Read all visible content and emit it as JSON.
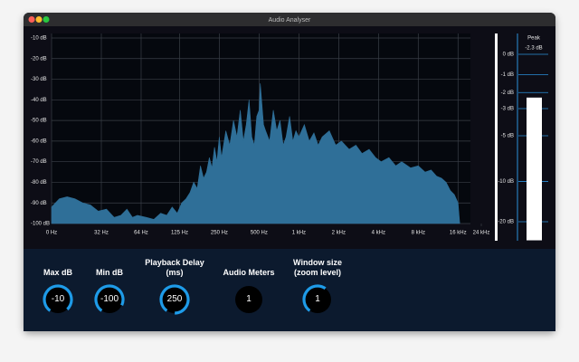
{
  "window": {
    "title": "Audio Analyser"
  },
  "chart_data": [
    {
      "type": "area",
      "color": "#2f6f98",
      "xscale": "log",
      "grid": true,
      "x": [
        0,
        5,
        10,
        15,
        20,
        25,
        30,
        35,
        40,
        45,
        50,
        55,
        60,
        70,
        80,
        90,
        100,
        110,
        120,
        130,
        140,
        150,
        160,
        170,
        180,
        190,
        200,
        210,
        220,
        230,
        240,
        250,
        260,
        280,
        300,
        320,
        340,
        360,
        380,
        400,
        420,
        440,
        460,
        480,
        500,
        510,
        540,
        560,
        600,
        640,
        680,
        720,
        760,
        800,
        850,
        900,
        950,
        1000,
        1100,
        1200,
        1300,
        1400,
        1500,
        1700,
        1900,
        2100,
        2400,
        2700,
        3000,
        3400,
        3800,
        4200,
        4800,
        5400,
        6000,
        7000,
        8000,
        9000,
        10000,
        11000,
        12000,
        13000,
        14000,
        15000,
        16000,
        16500
      ],
      "values": [
        -92,
        -88,
        -87,
        -88,
        -90,
        -91,
        -94,
        -93,
        -97,
        -96,
        -93,
        -97,
        -96,
        -97,
        -98,
        -95,
        -96,
        -92,
        -95,
        -90,
        -88,
        -85,
        -80,
        -83,
        -72,
        -78,
        -75,
        -68,
        -73,
        -63,
        -70,
        -58,
        -68,
        -55,
        -62,
        -50,
        -58,
        -45,
        -60,
        -52,
        -40,
        -58,
        -62,
        -48,
        -45,
        -32,
        -52,
        -55,
        -60,
        -45,
        -55,
        -50,
        -62,
        -58,
        -48,
        -60,
        -55,
        -58,
        -52,
        -60,
        -56,
        -62,
        -58,
        -55,
        -62,
        -60,
        -64,
        -62,
        -66,
        -64,
        -68,
        -70,
        -68,
        -72,
        -70,
        -73,
        -72,
        -75,
        -74,
        -77,
        -78,
        -80,
        -84,
        -86,
        -90,
        -100
      ],
      "xlim": [
        0,
        24000
      ],
      "xticks": [
        {
          "value": 0,
          "label": "0 Hz"
        },
        {
          "value": 32,
          "label": "32 Hz"
        },
        {
          "value": 64,
          "label": "64 Hz"
        },
        {
          "value": 125,
          "label": "125 Hz"
        },
        {
          "value": 250,
          "label": "250 Hz"
        },
        {
          "value": 500,
          "label": "500 Hz"
        },
        {
          "value": 1000,
          "label": "1 kHz"
        },
        {
          "value": 2000,
          "label": "2 kHz"
        },
        {
          "value": 4000,
          "label": "4 kHz"
        },
        {
          "value": 8000,
          "label": "8 kHz"
        },
        {
          "value": 16000,
          "label": "16 kHz"
        },
        {
          "value": 24000,
          "label": "24 kHz"
        }
      ],
      "ylim": [
        -100,
        -10
      ],
      "yticks": [
        {
          "value": -10,
          "label": "-10 dB"
        },
        {
          "value": -20,
          "label": "-20 dB"
        },
        {
          "value": -30,
          "label": "-30 dB"
        },
        {
          "value": -40,
          "label": "-40 dB"
        },
        {
          "value": -50,
          "label": "-50 dB"
        },
        {
          "value": -60,
          "label": "-60 dB"
        },
        {
          "value": -70,
          "label": "-70 dB"
        },
        {
          "value": -80,
          "label": "-80 dB"
        },
        {
          "value": -90,
          "label": "-90 dB"
        },
        {
          "value": -100,
          "label": "-100 dB"
        }
      ]
    },
    {
      "type": "meter",
      "title": "Peak",
      "color": "#ffffff",
      "yscale": "amplitude",
      "values": [
        -2.3
      ],
      "value_labels": [
        "-2.3 dB"
      ],
      "ylim": [
        -20,
        0
      ],
      "yticks": [
        {
          "value": 0,
          "label": "0 dB"
        },
        {
          "value": -1,
          "label": "-1 dB"
        },
        {
          "value": -2,
          "label": "-2 dB"
        },
        {
          "value": -3,
          "label": "-3 dB"
        },
        {
          "value": -5,
          "label": "-5 dB"
        },
        {
          "value": -10,
          "label": "-10 dB"
        },
        {
          "value": -20,
          "label": "-20 dB"
        }
      ]
    }
  ],
  "controls": [
    {
      "label": "Max dB",
      "value": -10
    },
    {
      "label": "Min dB",
      "value": -100
    },
    {
      "label": "Playback Delay (ms)",
      "value": 250
    },
    {
      "label": "Audio Meters",
      "value": 1
    },
    {
      "label": "Window size (zoom level)",
      "value": 1
    }
  ]
}
